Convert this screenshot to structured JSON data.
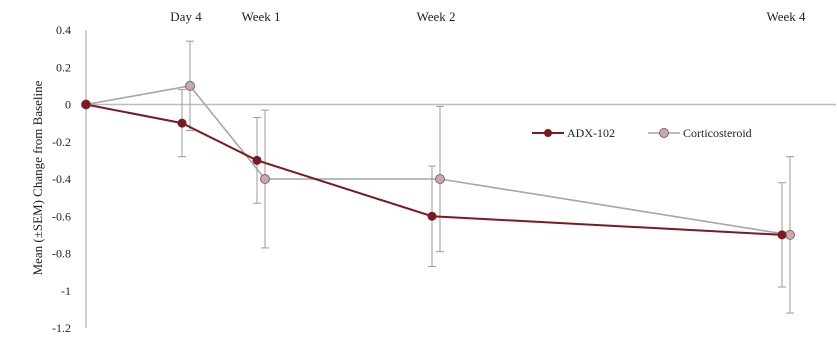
{
  "chart_data": {
    "type": "line",
    "title": "",
    "xlabel": "",
    "ylabel": "Mean (±SEM) Change from Baseline",
    "ylim": [
      -1.2,
      0.4
    ],
    "yticks": [
      0.4,
      0.2,
      0,
      -0.2,
      -0.4,
      -0.6,
      -0.8,
      -1,
      -1.2
    ],
    "ytick_labels": [
      "0.4",
      "0.2",
      "0",
      "-0.2",
      "-0.4",
      "-0.6",
      "-0.8",
      "-1",
      "-1.2"
    ],
    "x_days": [
      0,
      4,
      7,
      14,
      28
    ],
    "top_labels": [
      {
        "label": "Day 4",
        "day": 4
      },
      {
        "label": "Week 1",
        "day": 7
      },
      {
        "label": "Week 2",
        "day": 14
      },
      {
        "label": "Week 4",
        "day": 28
      }
    ],
    "grid": false,
    "legend_position": "right",
    "series": [
      {
        "name": "ADX-102",
        "color": "#7b1a1f",
        "values": [
          0.0,
          -0.1,
          -0.3,
          -0.6,
          -0.7
        ],
        "error": [
          0,
          0.18,
          0.23,
          0.27,
          0.28
        ]
      },
      {
        "name": "Corticosteroid",
        "color": "#a6a6a6",
        "marker_fill": "#c9a9ad",
        "values": [
          0.0,
          0.1,
          -0.4,
          -0.4,
          -0.7
        ],
        "error": [
          0,
          0.24,
          0.37,
          0.39,
          0.42
        ]
      }
    ]
  }
}
